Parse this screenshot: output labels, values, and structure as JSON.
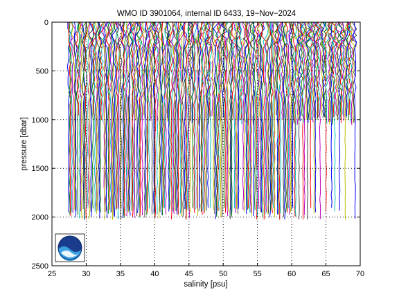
{
  "chart_data": {
    "type": "line",
    "title": "WMO ID 3901064, internal ID 6433, 19−Nov−2024",
    "xlabel": "salinity [psu]",
    "ylabel": "pressure [dbar]",
    "xlim": [
      25,
      70
    ],
    "ylim": [
      2500,
      0
    ],
    "y_reversed": true,
    "grid": true,
    "grid_style": "dotted",
    "xticks": [
      25,
      30,
      35,
      40,
      45,
      50,
      55,
      60,
      65,
      70
    ],
    "yticks": [
      0,
      500,
      1000,
      1500,
      2000,
      2500
    ],
    "xtick_labels": [
      "25",
      "30",
      "35",
      "40",
      "45",
      "50",
      "55",
      "60",
      "65",
      "70"
    ],
    "ytick_labels": [
      "0",
      "500",
      "1000",
      "1500",
      "2000",
      "2500"
    ],
    "logo": "noaa-logo",
    "series_colors": [
      "#0000ff",
      "#008000",
      "#ff0000",
      "#00bfbf",
      "#bf00bf",
      "#bfbf00",
      "#404040"
    ],
    "profiles": {
      "description_free": true,
      "offset_start": 27.4,
      "offset_end": 69.2,
      "count": 260,
      "full_depth_min": 1900,
      "full_depth_max": 2030,
      "partial_depth_min": 950,
      "partial_depth_max": 1060,
      "partial_region_start": 60.5
    }
  }
}
